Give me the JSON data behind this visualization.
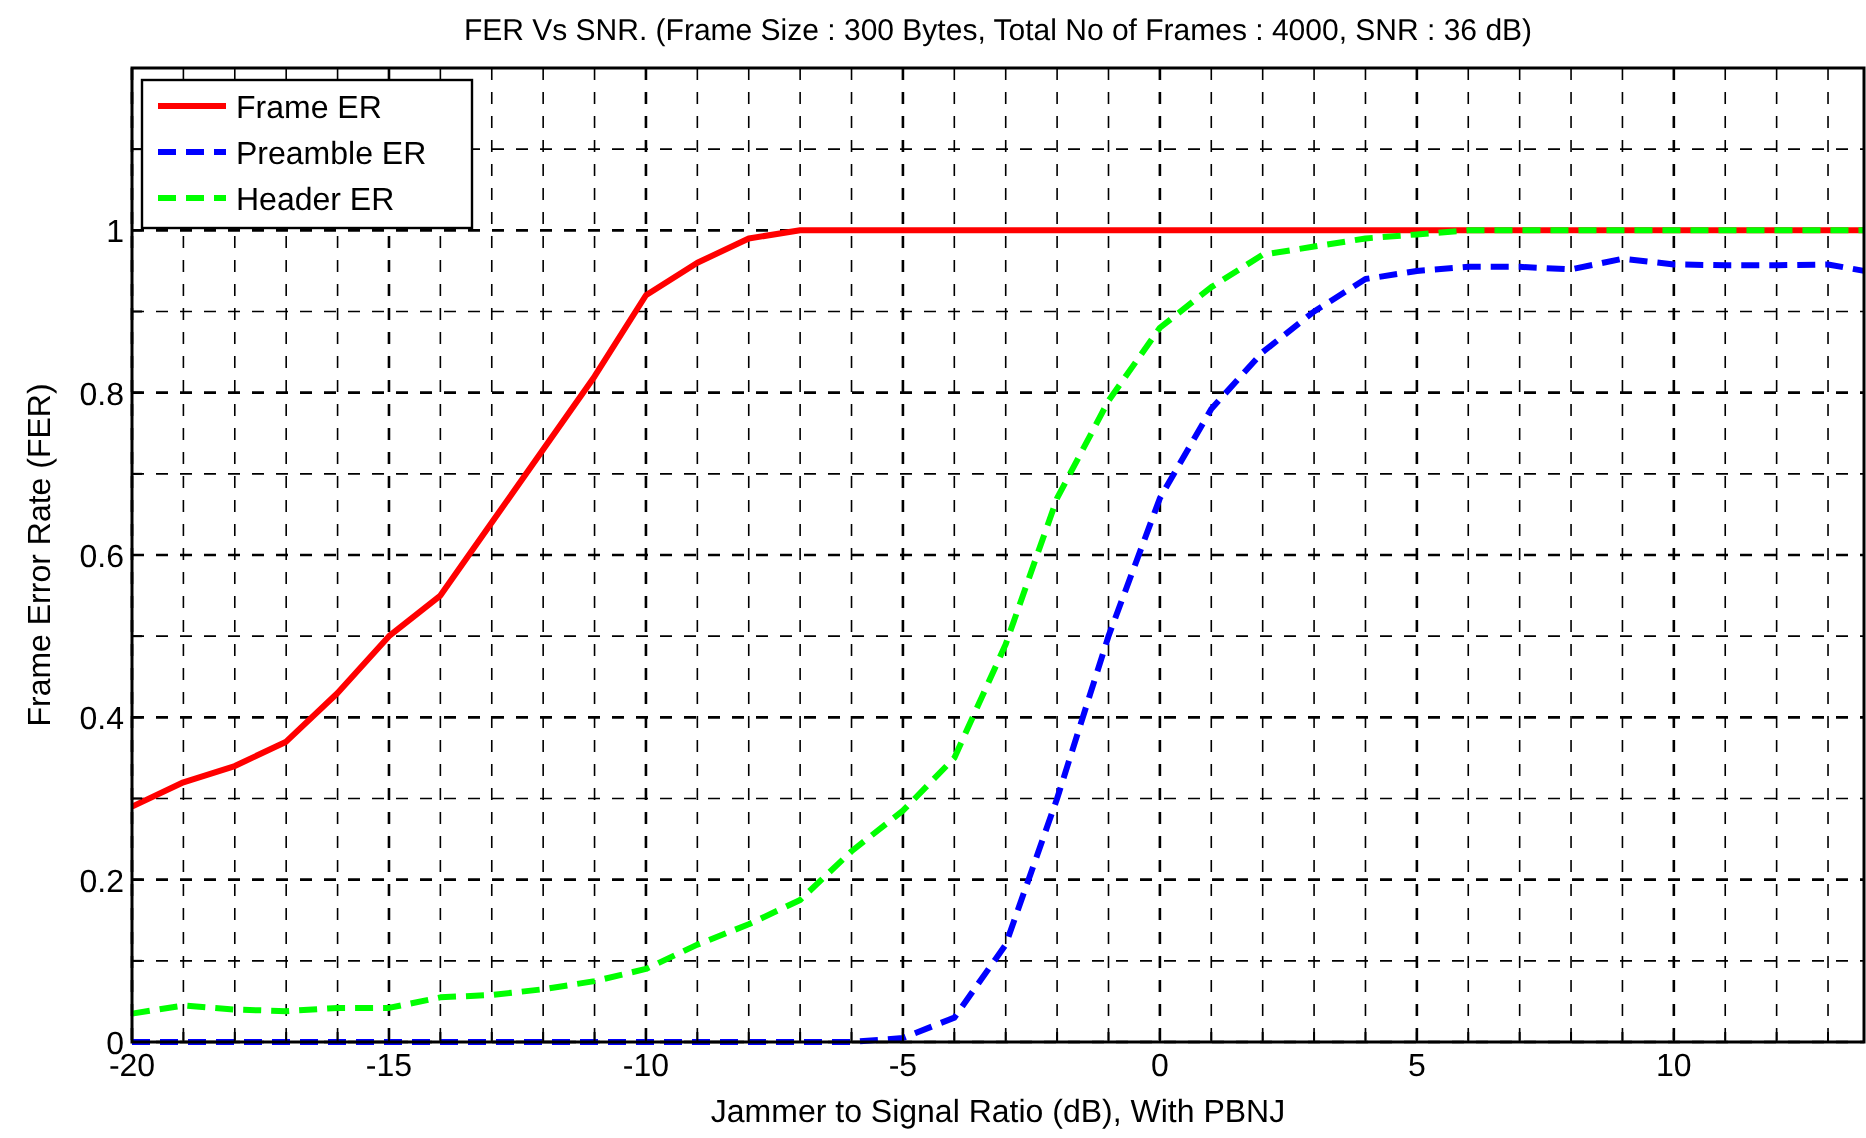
{
  "chart_data": {
    "type": "line",
    "title": "FER Vs  SNR. (Frame Size : 300 Bytes, Total No of Frames : 4000, SNR : 36 dB)",
    "xlabel": "Jammer to Signal Ratio (dB),  With PBNJ",
    "ylabel": "Frame Error Rate (FER)",
    "x": [
      -20,
      -19,
      -18,
      -17,
      -16,
      -15,
      -14,
      -13,
      -12,
      -11,
      -10,
      -9,
      -8,
      -7,
      -6,
      -5,
      -4,
      -3,
      -2,
      -1,
      0,
      1,
      2,
      3,
      4,
      5,
      6,
      7,
      8,
      9,
      10,
      11,
      12,
      13,
      13.7
    ],
    "series": [
      {
        "name": "Frame ER",
        "color": "#ff0000",
        "line_style": "solid",
        "values": [
          0.29,
          0.32,
          0.34,
          0.37,
          0.43,
          0.5,
          0.55,
          0.64,
          0.73,
          0.82,
          0.92,
          0.96,
          0.99,
          1,
          1,
          1,
          1,
          1,
          1,
          1,
          1,
          1,
          1,
          1,
          1,
          1,
          1,
          1,
          1,
          1,
          1,
          1,
          1,
          1,
          1
        ]
      },
      {
        "name": "Preamble ER",
        "color": "#0000ff",
        "line_style": "dashed",
        "values": [
          0,
          0,
          0,
          0,
          0,
          0,
          0,
          0,
          0,
          0,
          0,
          0,
          0,
          0,
          0,
          0.005,
          0.03,
          0.12,
          0.3,
          0.5,
          0.67,
          0.78,
          0.85,
          0.9,
          0.94,
          0.95,
          0.955,
          0.955,
          0.952,
          0.965,
          0.958,
          0.957,
          0.957,
          0.958,
          0.95
        ]
      },
      {
        "name": "Header ER",
        "color": "#00ff00",
        "line_style": "dashed",
        "values": [
          0.035,
          0.045,
          0.04,
          0.038,
          0.042,
          0.042,
          0.055,
          0.058,
          0.065,
          0.075,
          0.09,
          0.12,
          0.145,
          0.175,
          0.235,
          0.285,
          0.35,
          0.49,
          0.67,
          0.79,
          0.88,
          0.93,
          0.97,
          0.98,
          0.99,
          0.995,
          1,
          1,
          1,
          1,
          1,
          1,
          1,
          1,
          1
        ]
      }
    ],
    "xlim": [
      -20,
      13.7
    ],
    "xticks": [
      -20,
      {
        "value": -19,
        "label": null
      },
      {
        "value": -18,
        "label": null
      },
      {
        "value": -17,
        "label": null
      },
      {
        "value": -16,
        "label": null
      },
      -15,
      {
        "value": -14,
        "label": null
      },
      {
        "value": -13,
        "label": null
      },
      {
        "value": -12,
        "label": null
      },
      {
        "value": -11,
        "label": null
      },
      -10,
      {
        "value": -9,
        "label": null
      },
      {
        "value": -8,
        "label": null
      },
      {
        "value": -7,
        "label": null
      },
      {
        "value": -6,
        "label": null
      },
      -5,
      {
        "value": -4,
        "label": null
      },
      {
        "value": -3,
        "label": null
      },
      {
        "value": -2,
        "label": null
      },
      {
        "value": -1,
        "label": null
      },
      0,
      {
        "value": 1,
        "label": null
      },
      {
        "value": 2,
        "label": null
      },
      {
        "value": 3,
        "label": null
      },
      {
        "value": 4,
        "label": null
      },
      5,
      {
        "value": 6,
        "label": null
      },
      {
        "value": 7,
        "label": null
      },
      {
        "value": 8,
        "label": null
      },
      {
        "value": 9,
        "label": null
      },
      10,
      {
        "value": 11,
        "label": null
      },
      {
        "value": 12,
        "label": null
      },
      {
        "value": 13,
        "label": null
      }
    ],
    "ylim": [
      0,
      1.2
    ],
    "yticks": [
      0,
      {
        "value": 0.1,
        "label": null
      },
      0.2,
      {
        "value": 0.3,
        "label": null
      },
      0.4,
      {
        "value": 0.5,
        "label": null
      },
      0.6,
      {
        "value": 0.7,
        "label": null
      },
      0.8,
      {
        "value": 0.9,
        "label": null
      },
      1,
      {
        "value": 1.1,
        "label": null
      }
    ],
    "grid": true,
    "legend": "top left",
    "marker": "none"
  }
}
